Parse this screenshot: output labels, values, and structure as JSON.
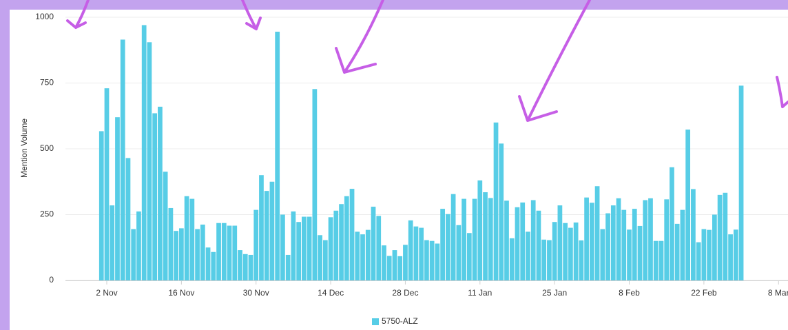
{
  "chart_data": {
    "type": "bar",
    "y_label": "Mention Volume",
    "ylim": [
      0,
      1000
    ],
    "yticks": [
      0,
      250,
      500,
      750,
      1000
    ],
    "grid": true,
    "categories": [
      null,
      "2 Nov",
      null,
      null,
      null,
      null,
      null,
      null,
      null,
      null,
      null,
      null,
      null,
      null,
      null,
      "16 Nov",
      null,
      null,
      null,
      null,
      null,
      null,
      null,
      null,
      null,
      null,
      null,
      null,
      null,
      "30 Nov",
      null,
      null,
      null,
      null,
      null,
      null,
      null,
      null,
      null,
      null,
      null,
      null,
      null,
      "14 Dec",
      null,
      null,
      null,
      null,
      null,
      null,
      null,
      null,
      null,
      null,
      null,
      null,
      null,
      "28 Dec",
      null,
      null,
      null,
      null,
      null,
      null,
      null,
      null,
      null,
      null,
      null,
      null,
      null,
      "11 Jan",
      null,
      null,
      null,
      null,
      null,
      null,
      null,
      null,
      null,
      null,
      null,
      null,
      null,
      "25 Jan",
      null,
      null,
      null,
      null,
      null,
      null,
      null,
      null,
      null,
      null,
      null,
      null,
      null,
      "8 Feb",
      null,
      null,
      null,
      null,
      null,
      null,
      null,
      null,
      null,
      null,
      null,
      null,
      null,
      "22 Feb",
      null,
      null,
      null,
      null,
      null,
      null,
      null,
      null,
      null,
      null,
      null,
      null,
      null,
      "8 Mar"
    ],
    "series": [
      {
        "name": "5750-ALZ",
        "color": "#57cde6",
        "values": [
          567,
          730,
          285,
          620,
          915,
          465,
          195,
          262,
          970,
          905,
          635,
          660,
          413,
          275,
          188,
          198,
          320,
          310,
          195,
          212,
          125,
          108,
          218,
          218,
          208,
          208,
          115,
          100,
          97,
          268,
          400,
          340,
          375,
          945,
          250,
          97,
          262,
          222,
          242,
          242,
          727,
          172,
          153,
          240,
          265,
          290,
          320,
          348,
          185,
          175,
          192,
          280,
          245,
          133,
          93,
          115,
          92,
          135,
          228,
          205,
          200,
          153,
          150,
          140,
          272,
          252,
          328,
          210,
          310,
          180,
          310,
          380,
          335,
          313,
          600,
          520,
          303,
          160,
          278,
          296,
          185,
          305,
          265,
          155,
          153,
          222,
          285,
          218,
          200,
          220,
          152,
          315,
          295,
          358,
          195,
          255,
          285,
          312,
          268,
          193,
          272,
          207,
          305,
          312,
          150,
          150,
          308,
          430,
          215,
          268,
          573,
          347,
          145,
          195,
          192,
          250,
          325,
          333,
          175,
          193,
          740,
          null,
          null,
          null,
          null,
          null,
          null,
          null
        ]
      }
    ]
  }
}
